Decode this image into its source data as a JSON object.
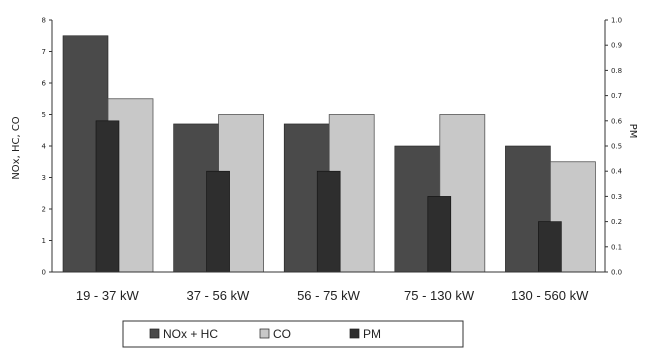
{
  "chart_data": {
    "type": "bar",
    "categories": [
      "19 - 37 kW",
      "37 - 56 kW",
      "56 - 75 kW",
      "75 - 130 kW",
      "130 - 560 kW"
    ],
    "series": [
      {
        "name": "NOx + HC",
        "axis": "left",
        "values": [
          7.5,
          4.7,
          4.7,
          4.0,
          4.0
        ]
      },
      {
        "name": "CO",
        "axis": "left",
        "values": [
          5.5,
          5.0,
          5.0,
          5.0,
          3.5
        ]
      },
      {
        "name": "PM",
        "axis": "right",
        "values": [
          0.6,
          0.4,
          0.4,
          0.3,
          0.2
        ]
      }
    ],
    "colors": {
      "NOx + HC": "#4a4a4a",
      "CO": "#c8c8c8",
      "PM": "#2e2e2e"
    },
    "ylabel": "NOx, HC, CO",
    "ylabel_right": "PM",
    "ylim": [
      0,
      8
    ],
    "ylim_right": [
      0,
      1.0
    ],
    "yticks": [
      0,
      1,
      2,
      3,
      4,
      5,
      6,
      7,
      8
    ],
    "yticks_right": [
      0.0,
      0.1,
      0.2,
      0.3,
      0.4,
      0.5,
      0.6,
      0.7,
      0.8,
      0.9,
      1.0
    ],
    "grid": false,
    "legend_placement": "bottom"
  }
}
